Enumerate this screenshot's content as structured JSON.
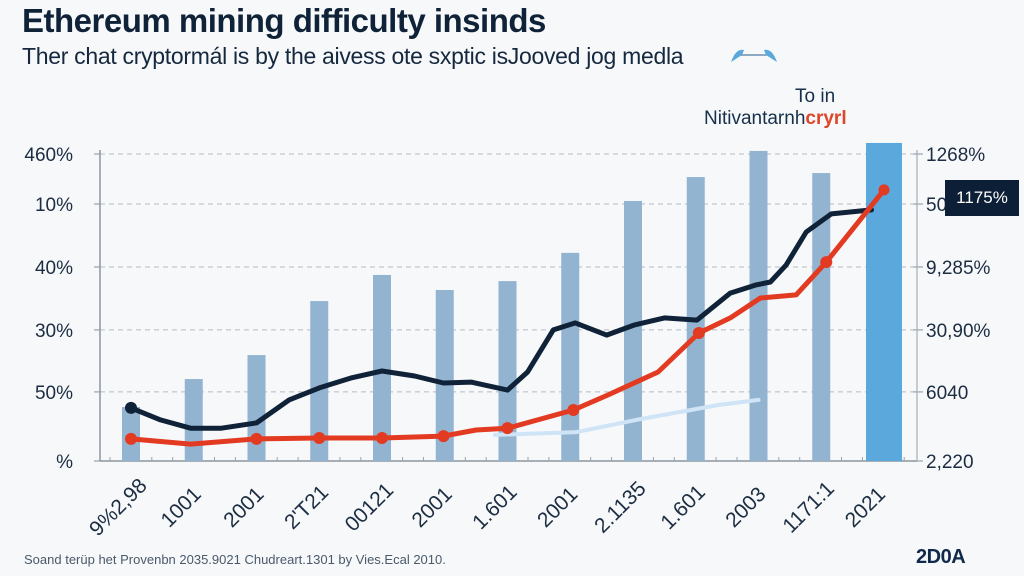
{
  "header": {
    "title": "Ethereum mining difficulty insinds",
    "subtitle": "Ther chat cryptormál is by the aivess ote sxptic isJooved jog medla",
    "subtitle_icon": "double-arrow-icon"
  },
  "legend": {
    "top_line": "To in",
    "main_text": "Nitivantarnh",
    "accent_text": "cryrl"
  },
  "callout": {
    "label": "1175%"
  },
  "footer": {
    "source": "Soand terüp het Provenbn 2035.9021 Chudreart.1301 by Vies.Ecal 2010.",
    "logo": "2D0A"
  },
  "colors": {
    "background": "#f6f8fa",
    "bar": "#93b4d1",
    "bar_highlight": "#5aa8dc",
    "line_dark": "#0f2238",
    "line_red": "#e33a22",
    "line_faint": "#cfe4f6",
    "grid": "#b5bcc4",
    "callout_bg": "#0d1f36"
  },
  "chart_data": {
    "type": "bar",
    "title": "Ethereum mining difficulty insinds",
    "subtitle": "Ther chat cryptormál is by the aivess ote sxptic isJooved jog medla",
    "xlabel": "",
    "ylabel": "",
    "categories": [
      "9%2,98",
      "1001",
      "2001",
      "2'T21",
      "00121",
      "2001",
      "1.601",
      "2001",
      "2.1135",
      "1.601",
      "2003",
      "1171:1",
      "2021"
    ],
    "ylim": [
      0,
      100
    ],
    "grid": true,
    "left_axis_ticks": [
      {
        "value": 0,
        "label": "%"
      },
      {
        "value": 22.5,
        "label": "50%"
      },
      {
        "value": 42.7,
        "label": "30%"
      },
      {
        "value": 63.2,
        "label": "40%"
      },
      {
        "value": 83.7,
        "label": "10%"
      },
      {
        "value": 100,
        "label": "460%"
      }
    ],
    "right_axis_ticks": [
      {
        "value": 0,
        "label": "2,220"
      },
      {
        "value": 22.5,
        "label": "6040"
      },
      {
        "value": 42.7,
        "label": "30,90%"
      },
      {
        "value": 63.2,
        "label": "9,285%"
      },
      {
        "value": 83.7,
        "label": "50"
      },
      {
        "value": 100,
        "label": "1268%"
      }
    ],
    "series": [
      {
        "name": "Difficulty bars",
        "type": "bar",
        "values": [
          17.6,
          26.7,
          34.5,
          52.1,
          60.6,
          55.7,
          58.6,
          67.8,
          84.7,
          92.5,
          101.0,
          93.8,
          103.6
        ],
        "highlight_index": 12
      },
      {
        "name": "Dark line",
        "type": "line",
        "x": [
          0,
          0.47,
          0.95,
          1.44,
          2.0,
          2.52,
          3.0,
          3.5,
          4.0,
          4.52,
          4.98,
          5.42,
          6.0,
          6.32,
          6.73,
          7.08,
          7.58,
          8.02,
          8.5,
          9.02,
          9.55,
          9.95,
          10.19,
          10.44,
          10.76,
          11.16,
          11.8
        ],
        "values": [
          17.3,
          13.4,
          10.7,
          10.7,
          12.4,
          19.9,
          23.8,
          27.0,
          29.3,
          27.7,
          25.4,
          25.7,
          23.1,
          29.0,
          42.7,
          45.0,
          41.0,
          44.3,
          46.6,
          45.9,
          54.7,
          57.3,
          58.3,
          63.8,
          74.6,
          80.5,
          81.8
        ]
      },
      {
        "name": "Red line",
        "type": "line",
        "markers": true,
        "x": [
          0,
          0.95,
          2.0,
          3.0,
          4.0,
          4.98,
          5.5,
          6.0,
          7.05,
          7.6,
          8.4,
          9.05,
          9.55,
          10.03,
          10.6,
          11.08,
          12.0
        ],
        "values": [
          7.2,
          5.5,
          7.2,
          7.5,
          7.5,
          8.1,
          10.1,
          10.7,
          16.6,
          21.5,
          29.0,
          41.7,
          46.6,
          53.1,
          54.1,
          64.8,
          88.3
        ]
      },
      {
        "name": "Faint line",
        "type": "line",
        "x": [
          5.8,
          7.1,
          8.05,
          9.35,
          10.0
        ],
        "values": [
          8.5,
          9.4,
          13.4,
          18.2,
          19.9
        ]
      }
    ],
    "annotations": [
      {
        "text": "1175%",
        "type": "callout",
        "position": "right"
      },
      {
        "text": "To in Nitivantarnh cryrl",
        "type": "legend",
        "position": "top-right"
      }
    ]
  }
}
